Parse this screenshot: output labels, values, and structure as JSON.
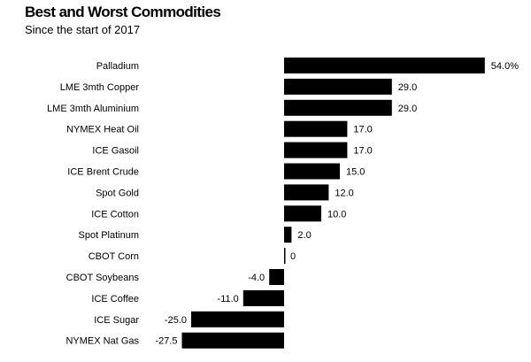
{
  "chart_data": {
    "type": "bar",
    "orientation": "horizontal",
    "title": "Best and Worst Commodities",
    "subtitle": "Since the start of 2017",
    "categories": [
      "Palladium",
      "LME 3mth Copper",
      "LME 3mth Aluminium",
      "NYMEX Heat Oil",
      "ICE Gasoil",
      "ICE Brent Crude",
      "Spot Gold",
      "ICE Cotton",
      "Spot Platinum",
      "CBOT Corn",
      "CBOT Soybeans",
      "ICE Coffee",
      "ICE Sugar",
      "NYMEX Nat Gas"
    ],
    "values": [
      54.0,
      29.0,
      29.0,
      17.0,
      17.0,
      15.0,
      12.0,
      10.0,
      2.0,
      0,
      -4.0,
      -11.0,
      -25.0,
      -27.5
    ],
    "data_labels": [
      "54.0%",
      "29.0",
      "29.0",
      "17.0",
      "17.0",
      "15.0",
      "12.0",
      "10.0",
      "2.0",
      "0",
      "-4.0",
      "-11.0",
      "-25.0",
      "-27.5"
    ],
    "xlim": [
      -27.5,
      54.0
    ],
    "grid": false,
    "legend": "none",
    "bar_color": "#000000"
  }
}
